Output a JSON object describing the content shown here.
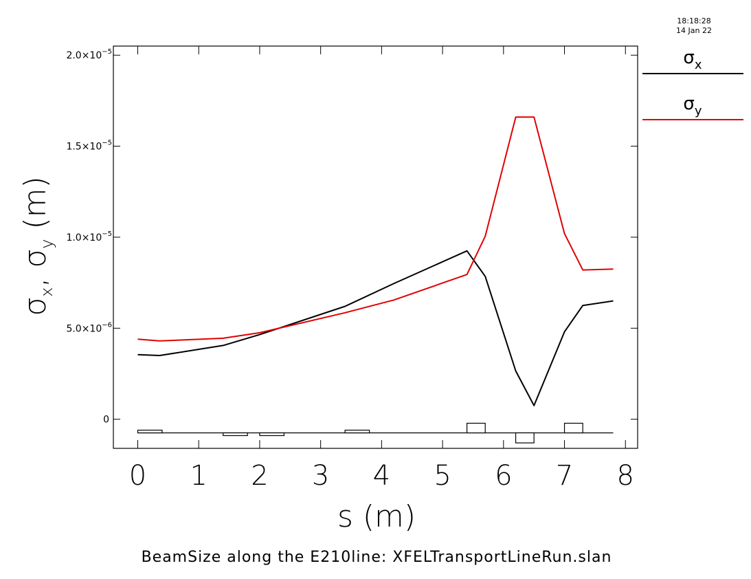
{
  "timestamp": {
    "time": "18:18:28",
    "date": "14 Jan 22"
  },
  "caption": "BeamSize along the E210line: XFELTransportLineRun.slan",
  "chart_data": {
    "type": "line",
    "xlabel": "s (m)",
    "ylabel": "σx, σy (m)",
    "xlim": [
      -0.4,
      8.2
    ],
    "ylim": [
      -1.6e-06,
      2.05e-05
    ],
    "x_ticks": [
      "0",
      "1",
      "2",
      "3",
      "4",
      "5",
      "6",
      "7",
      "8"
    ],
    "y_ticks": [
      {
        "value": 0,
        "mantissa": "0",
        "exponent": ""
      },
      {
        "value": 5e-06,
        "mantissa": "5.0×10",
        "exponent": "−6"
      },
      {
        "value": 1e-05,
        "mantissa": "1.0×10",
        "exponent": "−5"
      },
      {
        "value": 1.5e-05,
        "mantissa": "1.5×10",
        "exponent": "−5"
      },
      {
        "value": 2e-05,
        "mantissa": "2.0×10",
        "exponent": "−5"
      }
    ],
    "legend": {
      "placement": "right outside"
    },
    "series": [
      {
        "name": "σx",
        "symbol": "σ",
        "subscript": "x",
        "color": "#000000",
        "x": [
          0.0,
          0.36,
          1.4,
          2.0,
          3.4,
          4.2,
          5.4,
          5.7,
          6.2,
          6.5,
          7.0,
          7.3,
          7.8
        ],
        "y": [
          3.55e-06,
          3.5e-06,
          4.05e-06,
          4.65e-06,
          6.2e-06,
          7.45e-06,
          9.25e-06,
          7.85e-06,
          2.65e-06,
          7.5e-07,
          4.8e-06,
          6.25e-06,
          6.5e-06
        ]
      },
      {
        "name": "σy",
        "symbol": "σ",
        "subscript": "y",
        "color": "#e00000",
        "x": [
          0.0,
          0.36,
          1.4,
          2.0,
          3.4,
          4.2,
          5.4,
          5.7,
          6.2,
          6.35,
          6.5,
          7.0,
          7.3,
          7.8
        ],
        "y": [
          4.4e-06,
          4.3e-06,
          4.45e-06,
          4.75e-06,
          5.85e-06,
          6.55e-06,
          7.95e-06,
          1.005e-05,
          1.66e-05,
          1.66e-05,
          1.66e-05,
          1.02e-05,
          8.2e-06,
          8.25e-06
        ]
      }
    ],
    "lattice": {
      "baseline": -7.5e-07,
      "elements": [
        {
          "x0": 0.0,
          "x1": 0.4,
          "top": -6e-07,
          "bottom": -7.5e-07
        },
        {
          "x0": 1.4,
          "x1": 1.8,
          "top": -7.5e-07,
          "bottom": -9e-07
        },
        {
          "x0": 2.0,
          "x1": 2.4,
          "top": -7.5e-07,
          "bottom": -9e-07
        },
        {
          "x0": 3.4,
          "x1": 3.8,
          "top": -6e-07,
          "bottom": -7.5e-07
        },
        {
          "x0": 5.4,
          "x1": 5.7,
          "top": -2.2e-07,
          "bottom": -7.5e-07
        },
        {
          "x0": 6.2,
          "x1": 6.5,
          "top": -7.5e-07,
          "bottom": -1.3e-06
        },
        {
          "x0": 7.0,
          "x1": 7.3,
          "top": -2.2e-07,
          "bottom": -7.5e-07
        }
      ]
    }
  }
}
